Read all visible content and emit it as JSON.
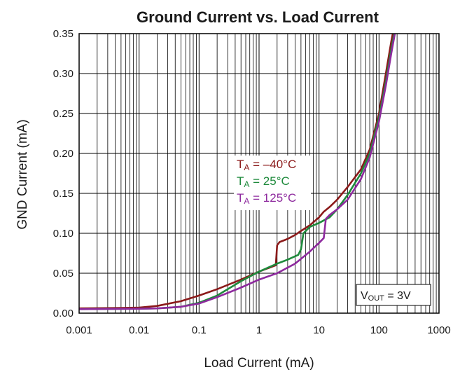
{
  "chart_data": {
    "type": "line",
    "title": "Ground Current vs. Load Current",
    "xlabel": "Load Current (mA)",
    "ylabel": "GND Current (mA)",
    "x_scale": "log",
    "xlim": [
      0.001,
      1000
    ],
    "ylim": [
      0,
      0.35
    ],
    "grid": true,
    "x_ticks": [
      0.001,
      0.01,
      0.1,
      1,
      10,
      100,
      1000
    ],
    "x_tick_labels": [
      "0.001",
      "0.01",
      "0.1",
      "1",
      "10",
      "100",
      "1000"
    ],
    "y_ticks": [
      0,
      0.05,
      0.1,
      0.15,
      0.2,
      0.25,
      0.3,
      0.35
    ],
    "y_tick_labels": [
      "0.00",
      "0.05",
      "0.10",
      "0.15",
      "0.20",
      "0.25",
      "0.30",
      "0.35"
    ],
    "annotation": {
      "main": "V",
      "sub": "OUT",
      "rest": " = 3V"
    },
    "legend_position": "center",
    "series": [
      {
        "name": "TA = –40°C",
        "label_main": "T",
        "label_sub": "A",
        "label_rest": " = –40°C",
        "color": "#8b1a1a",
        "x": [
          0.001,
          0.005,
          0.01,
          0.02,
          0.05,
          0.1,
          0.2,
          0.5,
          1,
          1.5,
          1.9,
          2.0,
          2.2,
          3,
          4,
          5,
          7,
          10,
          12,
          15,
          20,
          30,
          50,
          70,
          100,
          130,
          160,
          180
        ],
        "y": [
          0.006,
          0.0065,
          0.007,
          0.009,
          0.015,
          0.022,
          0.03,
          0.042,
          0.052,
          0.057,
          0.06,
          0.085,
          0.089,
          0.093,
          0.098,
          0.103,
          0.11,
          0.12,
          0.127,
          0.133,
          0.142,
          0.158,
          0.18,
          0.205,
          0.25,
          0.3,
          0.34,
          0.36
        ]
      },
      {
        "name": "TA = 25°C",
        "label_main": "T",
        "label_sub": "A",
        "label_rest": " = 25°C",
        "color": "#1e8a3c",
        "x": [
          0.001,
          0.01,
          0.02,
          0.05,
          0.1,
          0.2,
          0.5,
          1,
          2,
          3,
          4.5,
          5,
          5.5,
          7,
          10,
          15,
          20,
          30,
          50,
          70,
          100,
          130,
          160,
          190
        ],
        "y": [
          0.005,
          0.0055,
          0.006,
          0.008,
          0.013,
          0.022,
          0.04,
          0.052,
          0.062,
          0.067,
          0.073,
          0.08,
          0.1,
          0.108,
          0.113,
          0.12,
          0.13,
          0.148,
          0.175,
          0.2,
          0.245,
          0.29,
          0.33,
          0.36
        ]
      },
      {
        "name": "TA = 125°C",
        "label_main": "T",
        "label_sub": "A",
        "label_rest": " = 125°C",
        "color": "#8e2a9e",
        "x": [
          0.001,
          0.01,
          0.02,
          0.05,
          0.1,
          0.2,
          0.5,
          1,
          2,
          4,
          7,
          10,
          12,
          13,
          15,
          20,
          30,
          50,
          70,
          100,
          130,
          160,
          200
        ],
        "y": [
          0.005,
          0.0055,
          0.006,
          0.008,
          0.012,
          0.02,
          0.032,
          0.042,
          0.05,
          0.062,
          0.077,
          0.088,
          0.094,
          0.118,
          0.123,
          0.13,
          0.142,
          0.168,
          0.195,
          0.24,
          0.285,
          0.325,
          0.365
        ]
      }
    ]
  }
}
